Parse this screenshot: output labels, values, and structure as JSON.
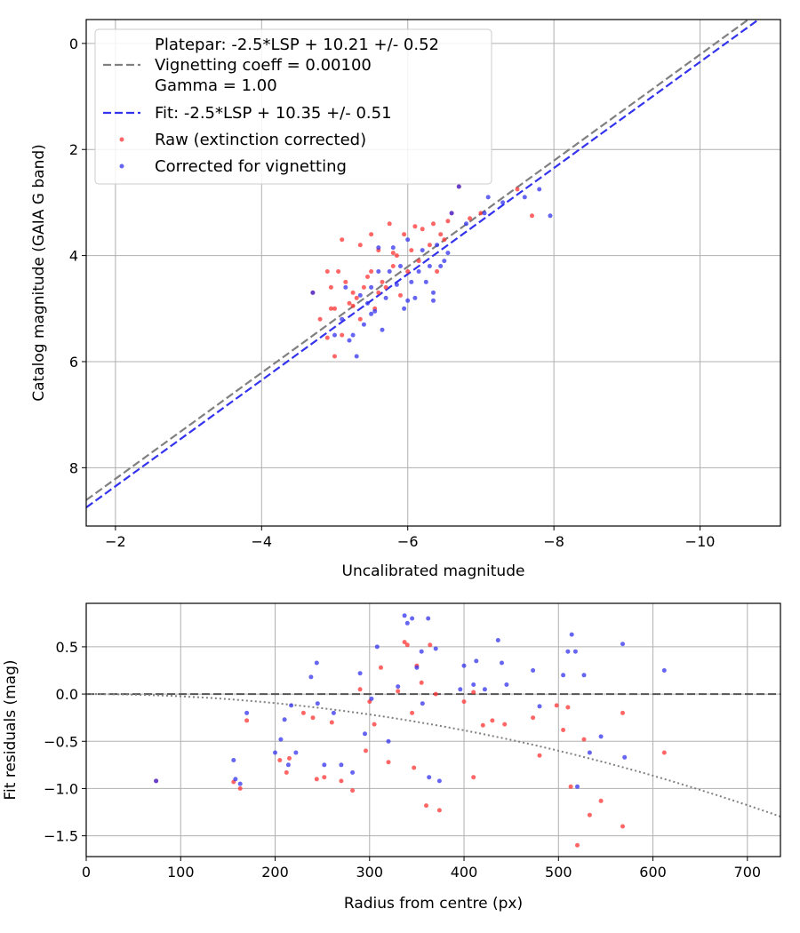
{
  "chart_data": [
    {
      "type": "scatter",
      "xlabel": "Uncalibrated magnitude",
      "ylabel": "Catalog magnitude (GAIA G band)",
      "xlim": [
        -1.6,
        -11.1
      ],
      "ylim": [
        9.1,
        -0.45
      ],
      "x_inverted": true,
      "y_inverted": true,
      "grid": true,
      "legend_position": "upper-left",
      "xticks": [
        -2,
        -4,
        -6,
        -8,
        -10
      ],
      "xtick_labels": [
        "−2",
        "−4",
        "−6",
        "−8",
        "−10"
      ],
      "yticks": [
        0,
        2,
        4,
        6,
        8
      ],
      "ytick_labels": [
        "0",
        "2",
        "4",
        "6",
        "8"
      ],
      "lines": [
        {
          "name": "Platepar: -2.5*LSP + 10.21 +/- 0.52",
          "slope": 1,
          "intercept": 10.21,
          "color": "#808080",
          "dash": "dashed"
        },
        {
          "name": "Vignetting coeff = 0.00100",
          "hidden": true
        },
        {
          "name": "Gamma = 1.00",
          "hidden": true
        },
        {
          "name": "Fit: -2.5*LSP + 10.35 +/- 0.51",
          "slope": 1,
          "intercept": 10.35,
          "color": "#3333ee",
          "dash": "dashed"
        }
      ],
      "series": [
        {
          "name": "Raw (extinction corrected)",
          "color": "#ff3333",
          "points": [
            [
              -4.7,
              4.7
            ],
            [
              -4.8,
              5.2
            ],
            [
              -4.9,
              5.55
            ],
            [
              -4.9,
              4.3
            ],
            [
              -4.95,
              4.6
            ],
            [
              -5.0,
              5.9
            ],
            [
              -5.0,
              5.0
            ],
            [
              -5.05,
              4.3
            ],
            [
              -5.1,
              3.7
            ],
            [
              -5.1,
              5.5
            ],
            [
              -5.15,
              4.5
            ],
            [
              -5.2,
              4.9
            ],
            [
              -5.25,
              4.7
            ],
            [
              -5.3,
              4.8
            ],
            [
              -5.35,
              3.8
            ],
            [
              -5.35,
              5.2
            ],
            [
              -5.4,
              4.6
            ],
            [
              -5.5,
              3.6
            ],
            [
              -5.5,
              4.3
            ],
            [
              -5.55,
              5.0
            ],
            [
              -5.6,
              3.9
            ],
            [
              -5.65,
              4.5
            ],
            [
              -5.7,
              4.6
            ],
            [
              -5.75,
              3.4
            ],
            [
              -5.8,
              4.2
            ],
            [
              -5.85,
              4.0
            ],
            [
              -5.9,
              4.75
            ],
            [
              -5.95,
              3.6
            ],
            [
              -6.0,
              4.3
            ],
            [
              -6.05,
              3.9
            ],
            [
              -6.1,
              3.45
            ],
            [
              -6.15,
              4.1
            ],
            [
              -6.2,
              3.5
            ],
            [
              -6.3,
              3.8
            ],
            [
              -6.35,
              3.4
            ],
            [
              -6.4,
              4.3
            ],
            [
              -6.5,
              3.7
            ],
            [
              -6.55,
              3.35
            ],
            [
              -6.6,
              3.2
            ],
            [
              -6.7,
              2.7
            ],
            [
              -6.85,
              3.3
            ],
            [
              -7.0,
              3.2
            ],
            [
              -7.5,
              2.75
            ],
            [
              -7.7,
              3.25
            ],
            [
              -5.25,
              4.95
            ],
            [
              -5.6,
              4.7
            ],
            [
              -5.8,
              3.95
            ],
            [
              -6.45,
              3.6
            ],
            [
              -4.95,
              5.0
            ],
            [
              -5.45,
              4.4
            ]
          ]
        },
        {
          "name": "Corrected for vignetting",
          "color": "#3333ee",
          "points": [
            [
              -4.7,
              4.7
            ],
            [
              -5.0,
              5.5
            ],
            [
              -5.1,
              5.2
            ],
            [
              -5.2,
              5.6
            ],
            [
              -5.3,
              5.9
            ],
            [
              -5.4,
              5.3
            ],
            [
              -5.45,
              4.9
            ],
            [
              -5.5,
              4.6
            ],
            [
              -5.5,
              5.1
            ],
            [
              -5.6,
              4.3
            ],
            [
              -5.65,
              5.4
            ],
            [
              -5.7,
              4.8
            ],
            [
              -5.75,
              4.3
            ],
            [
              -5.8,
              3.85
            ],
            [
              -5.85,
              4.55
            ],
            [
              -5.9,
              4.2
            ],
            [
              -5.95,
              5.0
            ],
            [
              -6.0,
              3.7
            ],
            [
              -6.05,
              4.5
            ],
            [
              -6.1,
              4.8
            ],
            [
              -6.15,
              4.3
            ],
            [
              -6.2,
              3.9
            ],
            [
              -6.25,
              4.5
            ],
            [
              -6.3,
              4.2
            ],
            [
              -6.35,
              4.7
            ],
            [
              -6.4,
              3.8
            ],
            [
              -6.45,
              4.2
            ],
            [
              -6.5,
              4.1
            ],
            [
              -6.55,
              3.95
            ],
            [
              -6.6,
              3.2
            ],
            [
              -6.7,
              2.7
            ],
            [
              -6.8,
              3.4
            ],
            [
              -7.05,
              3.2
            ],
            [
              -7.1,
              2.9
            ],
            [
              -7.3,
              3.0
            ],
            [
              -7.6,
              2.9
            ],
            [
              -7.8,
              2.75
            ],
            [
              -7.95,
              3.25
            ],
            [
              -5.25,
              5.5
            ],
            [
              -5.35,
              4.75
            ],
            [
              -5.55,
              5.05
            ],
            [
              -6.0,
              4.85
            ],
            [
              -6.35,
              4.85
            ],
            [
              -5.15,
              4.6
            ],
            [
              -5.6,
              3.85
            ]
          ]
        }
      ]
    },
    {
      "type": "scatter",
      "xlabel": "Radius from centre (px)",
      "ylabel": "Fit residuals (mag)",
      "xlim": [
        0,
        735
      ],
      "ylim": [
        -1.72,
        0.96
      ],
      "grid": true,
      "xticks": [
        0,
        100,
        200,
        300,
        400,
        500,
        600,
        700
      ],
      "xtick_labels": [
        "0",
        "100",
        "200",
        "300",
        "400",
        "500",
        "600",
        "700"
      ],
      "yticks": [
        0.5,
        0.0,
        -0.5,
        -1.0,
        -1.5
      ],
      "ytick_labels": [
        "0.5",
        "0.0",
        "−0.5",
        "−1.0",
        "−1.5"
      ],
      "lines": [
        {
          "kind": "hline",
          "y": 0,
          "color": "#555555",
          "dash": "dashed"
        },
        {
          "kind": "quadratic",
          "a": -2.4e-06,
          "b": 0.0,
          "color": "#808080",
          "dash": "dotted"
        }
      ],
      "series": [
        {
          "name": "Raw (extinction corrected)",
          "color": "#ff3333",
          "points": [
            [
              74,
              -0.92
            ],
            [
              156,
              -0.93
            ],
            [
              163,
              -1.0
            ],
            [
              170,
              -0.28
            ],
            [
              205,
              -0.7
            ],
            [
              212,
              -0.83
            ],
            [
              215,
              -0.68
            ],
            [
              240,
              -0.25
            ],
            [
              244,
              -0.9
            ],
            [
              252,
              -0.88
            ],
            [
              260,
              -0.3
            ],
            [
              270,
              -0.92
            ],
            [
              282,
              -1.02
            ],
            [
              290,
              0.05
            ],
            [
              300,
              -0.08
            ],
            [
              305,
              -0.32
            ],
            [
              312,
              0.28
            ],
            [
              320,
              -0.72
            ],
            [
              330,
              0.03
            ],
            [
              337,
              0.55
            ],
            [
              340,
              0.52
            ],
            [
              345,
              -0.2
            ],
            [
              350,
              0.3
            ],
            [
              355,
              0.12
            ],
            [
              360,
              -1.18
            ],
            [
              364,
              0.52
            ],
            [
              370,
              0.0
            ],
            [
              374,
              -1.23
            ],
            [
              400,
              -0.08
            ],
            [
              410,
              0.02
            ],
            [
              420,
              -0.33
            ],
            [
              430,
              -0.28
            ],
            [
              443,
              -0.32
            ],
            [
              473,
              -0.25
            ],
            [
              480,
              -0.65
            ],
            [
              505,
              -0.38
            ],
            [
              510,
              -0.14
            ],
            [
              513,
              -0.98
            ],
            [
              520,
              -1.6
            ],
            [
              527,
              -0.48
            ],
            [
              533,
              -1.28
            ],
            [
              545,
              -1.13
            ],
            [
              568,
              -0.2
            ],
            [
              568,
              -1.4
            ],
            [
              612,
              -0.62
            ],
            [
              230,
              -0.2
            ],
            [
              296,
              -0.6
            ],
            [
              347,
              -0.78
            ],
            [
              410,
              -0.88
            ],
            [
              498,
              -0.12
            ]
          ]
        },
        {
          "name": "Corrected for vignetting",
          "color": "#3333ee",
          "points": [
            [
              74,
              -0.92
            ],
            [
              156,
              -0.7
            ],
            [
              158,
              -0.9
            ],
            [
              163,
              -0.95
            ],
            [
              170,
              -0.2
            ],
            [
              200,
              -0.62
            ],
            [
              206,
              -0.48
            ],
            [
              210,
              -0.27
            ],
            [
              214,
              -0.75
            ],
            [
              217,
              -0.12
            ],
            [
              222,
              -0.62
            ],
            [
              238,
              0.18
            ],
            [
              244,
              0.33
            ],
            [
              245,
              -0.1
            ],
            [
              252,
              -0.75
            ],
            [
              270,
              -0.75
            ],
            [
              282,
              -0.83
            ],
            [
              290,
              0.22
            ],
            [
              295,
              -0.42
            ],
            [
              302,
              -0.05
            ],
            [
              308,
              0.5
            ],
            [
              320,
              -0.5
            ],
            [
              330,
              0.08
            ],
            [
              337,
              0.83
            ],
            [
              340,
              0.75
            ],
            [
              345,
              0.8
            ],
            [
              350,
              0.28
            ],
            [
              355,
              0.45
            ],
            [
              356,
              -0.1
            ],
            [
              362,
              0.8
            ],
            [
              370,
              0.48
            ],
            [
              374,
              -0.92
            ],
            [
              400,
              0.3
            ],
            [
              410,
              0.1
            ],
            [
              413,
              0.35
            ],
            [
              422,
              0.05
            ],
            [
              436,
              0.57
            ],
            [
              440,
              0.33
            ],
            [
              445,
              0.1
            ],
            [
              473,
              0.25
            ],
            [
              480,
              -0.13
            ],
            [
              505,
              0.2
            ],
            [
              510,
              0.45
            ],
            [
              514,
              0.63
            ],
            [
              518,
              0.45
            ],
            [
              520,
              -0.98
            ],
            [
              527,
              0.2
            ],
            [
              533,
              -0.62
            ],
            [
              545,
              -0.45
            ],
            [
              568,
              0.53
            ],
            [
              570,
              -0.67
            ],
            [
              612,
              0.25
            ],
            [
              262,
              -0.2
            ],
            [
              363,
              -0.88
            ],
            [
              396,
              0.05
            ]
          ]
        }
      ]
    }
  ]
}
